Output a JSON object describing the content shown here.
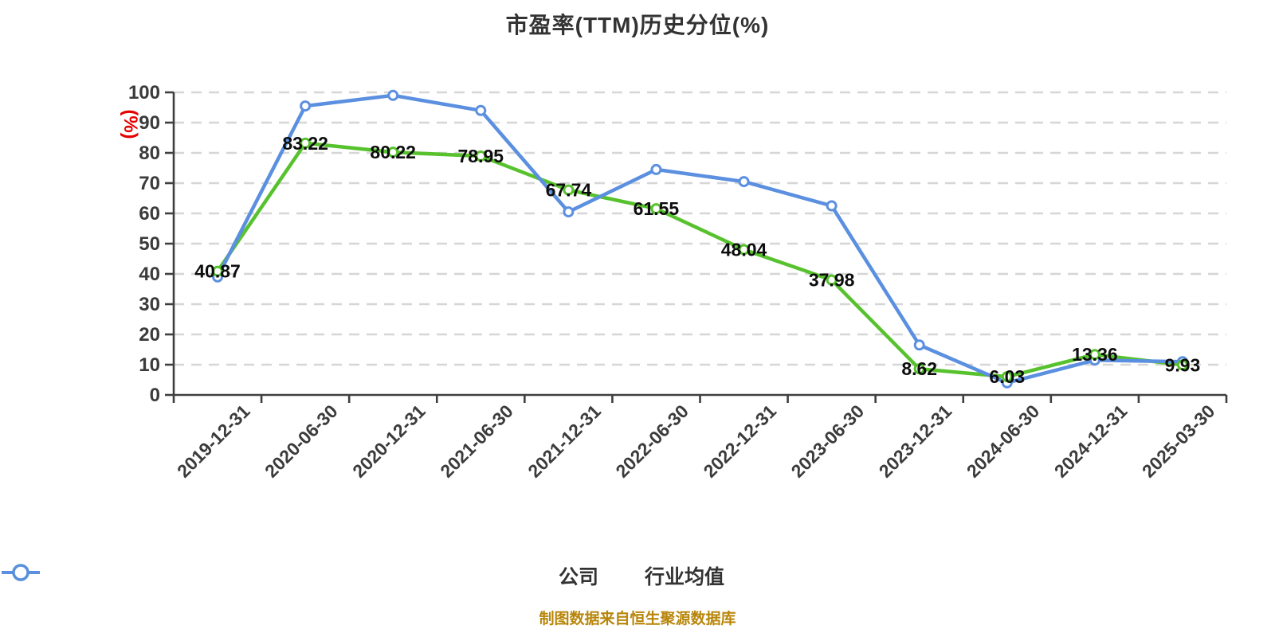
{
  "title": "市盈率(TTM)历史分位(%)",
  "source_note": "制图数据来自恒生聚源数据库",
  "colors": {
    "company_series": "#57c22d",
    "industry_series": "#5b8fe0",
    "ylabel": "#e60000",
    "source_note": "#b8860b",
    "axis": "#3f3f3f",
    "grid": "#d6d6d6",
    "tick_label": "#3b3b3b",
    "point_label": "#0d0d0d",
    "title": "#333333",
    "background": "#ffffff",
    "marker_fill": "#ffffff"
  },
  "chart_data": {
    "type": "line",
    "title": "市盈率(TTM)历史分位(%)",
    "xlabel": "",
    "ylabel": "(%)",
    "ylim": [
      0,
      100
    ],
    "ytick_interval": 10,
    "yticks": [
      0,
      10,
      20,
      30,
      40,
      50,
      60,
      70,
      80,
      90,
      100
    ],
    "grid": "horizontal dashed",
    "legend_position": "bottom-center",
    "categories": [
      "2019-12-31",
      "2020-06-30",
      "2020-12-31",
      "2021-06-30",
      "2021-12-31",
      "2022-06-30",
      "2022-12-31",
      "2023-06-30",
      "2023-12-31",
      "2024-06-30",
      "2024-12-31",
      "2025-03-30"
    ],
    "series": [
      {
        "key": "company",
        "name": "公司",
        "color": "#57c22d",
        "values": [
          40.87,
          83.22,
          80.22,
          78.95,
          67.74,
          61.55,
          48.04,
          37.98,
          8.62,
          6.03,
          13.36,
          9.93
        ],
        "point_labels": true
      },
      {
        "key": "industry-average",
        "name": "行业均值",
        "color": "#5b8fe0",
        "values": [
          39,
          95.5,
          99,
          94,
          60.5,
          74.5,
          70.5,
          62.5,
          16.5,
          4,
          11.5,
          11
        ],
        "point_labels": false,
        "estimated": true
      }
    ]
  }
}
